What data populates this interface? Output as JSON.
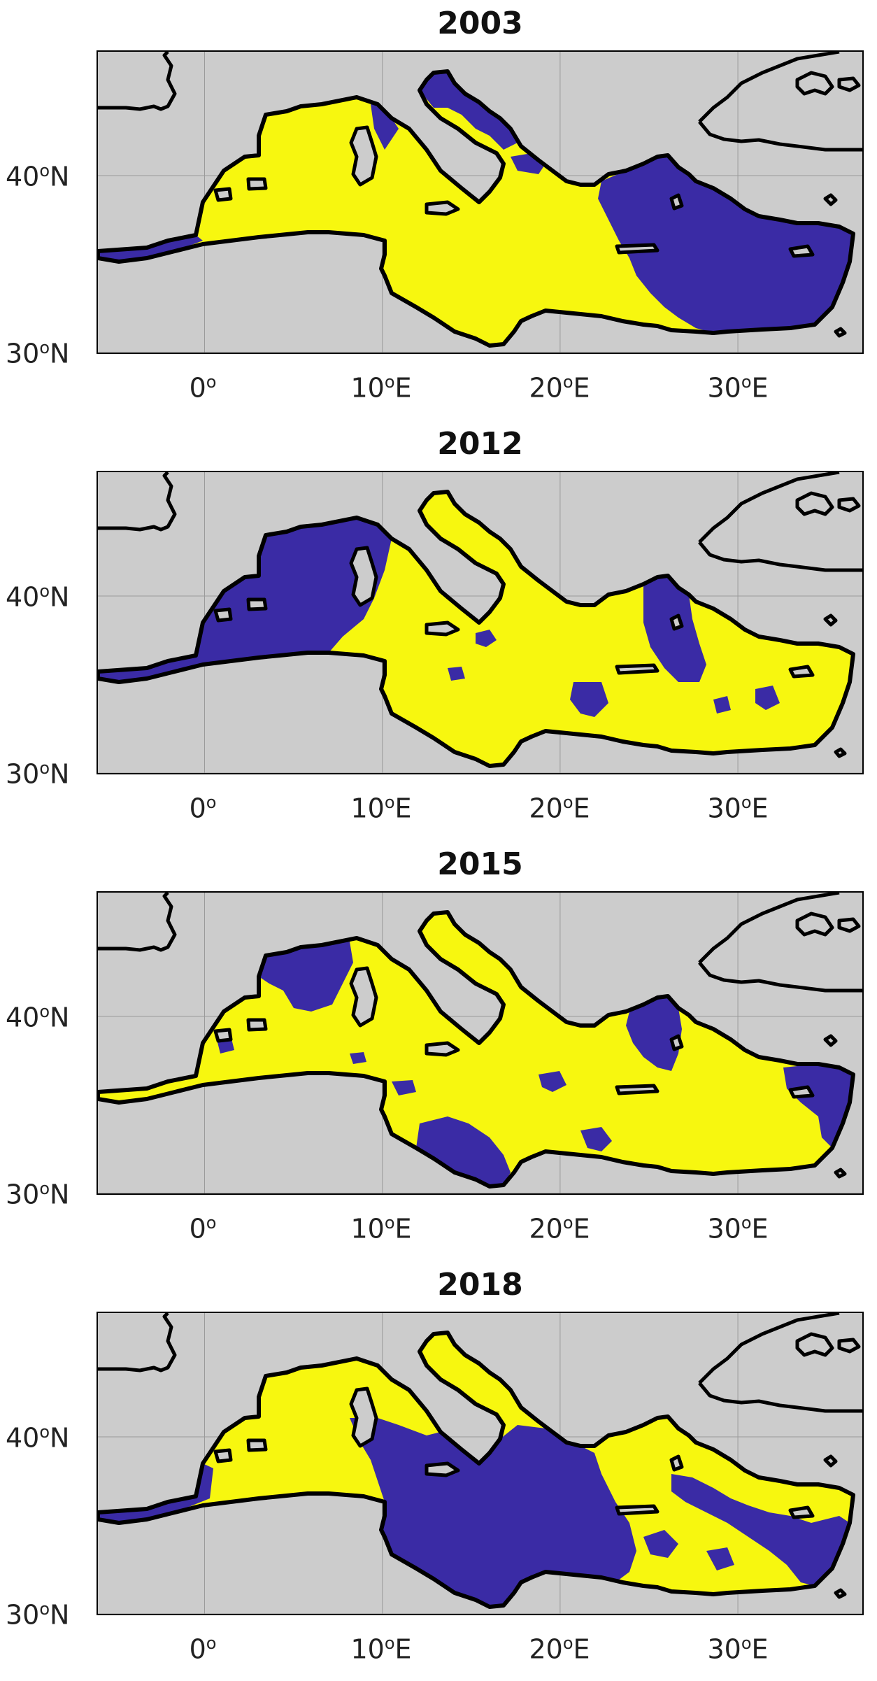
{
  "legend": {
    "class_a_color": "#f7f70f",
    "class_b_color": "#3a2ba5",
    "land_color": "#cccccc",
    "coast_color": "#000000"
  },
  "axes": {
    "lon_ticks": [
      {
        "value": 0,
        "deg": "0",
        "suffix": ""
      },
      {
        "value": 10,
        "deg": "10",
        "suffix": "E"
      },
      {
        "value": 20,
        "deg": "20",
        "suffix": "E"
      },
      {
        "value": 30,
        "deg": "30",
        "suffix": "E"
      }
    ],
    "lat_ticks": [
      {
        "value": 30,
        "deg": "30",
        "suffix": "N"
      },
      {
        "value": 40,
        "deg": "40",
        "suffix": "N"
      }
    ],
    "lon_range": [
      -6,
      37
    ],
    "lat_range": [
      30,
      47
    ]
  },
  "panels": [
    {
      "year": "2003",
      "pattern": "west-yellow-east-blue"
    },
    {
      "year": "2012",
      "pattern": "west-blue-east-yellow"
    },
    {
      "year": "2015",
      "pattern": "mostly-yellow"
    },
    {
      "year": "2018",
      "pattern": "central-blue"
    }
  ]
}
